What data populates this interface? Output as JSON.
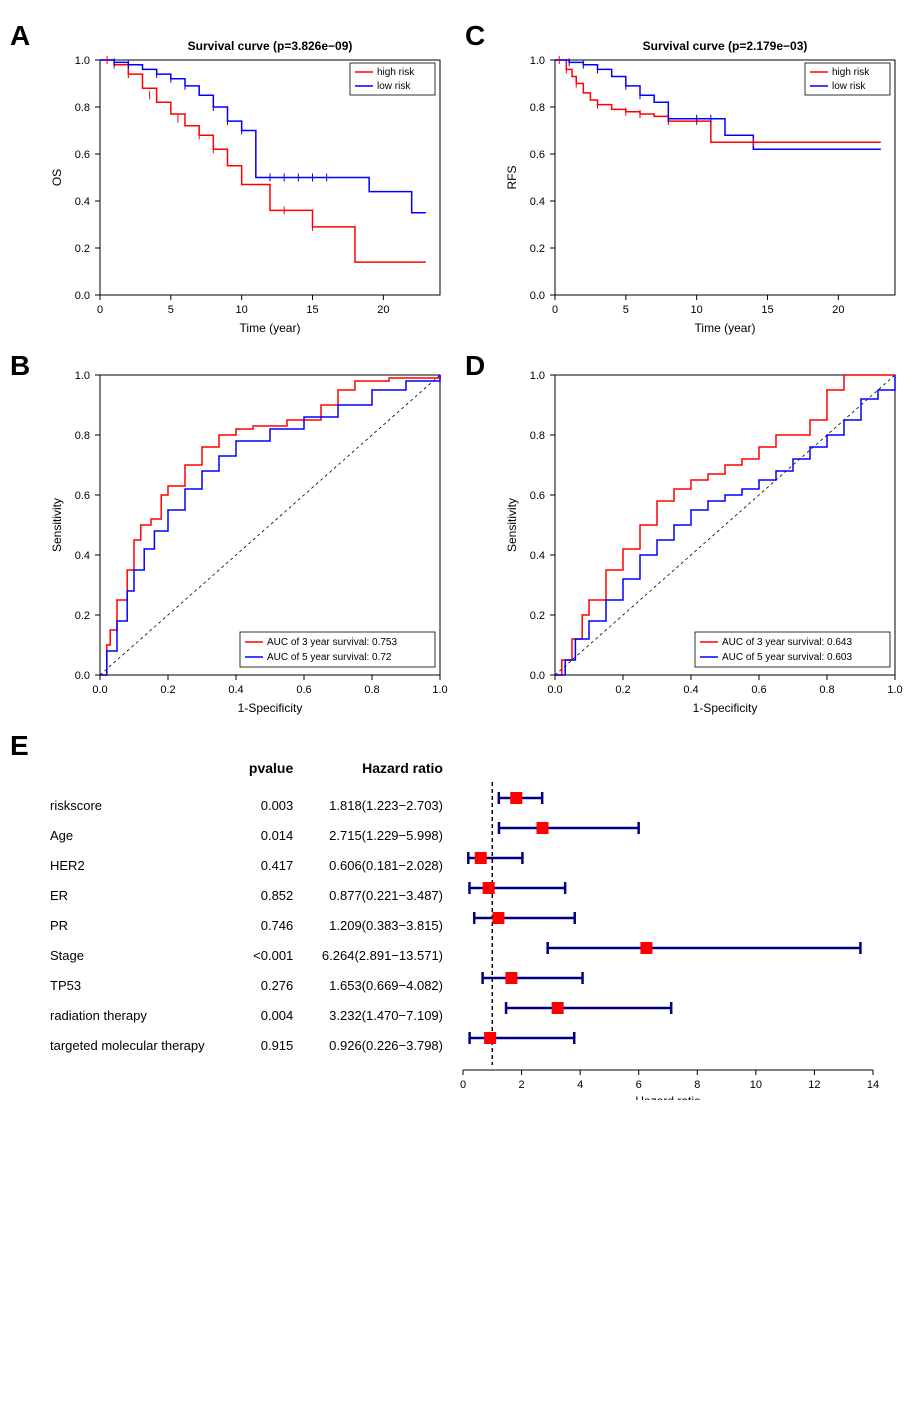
{
  "panel_labels": {
    "A": "A",
    "B": "B",
    "C": "C",
    "D": "D",
    "E": "E"
  },
  "colors": {
    "high_risk": "#ff0000",
    "low_risk": "#0000ff",
    "auc3": "#ff0000",
    "auc5": "#0000ff",
    "forest_line": "#000080",
    "forest_box": "#ff0000",
    "black": "#000000"
  },
  "panelA": {
    "type": "kaplan-meier",
    "title": "Survival curve (p=3.826e−09)",
    "xlabel": "Time (year)",
    "ylabel": "OS",
    "xlim": [
      0,
      24
    ],
    "xticks": [
      0,
      5,
      10,
      15,
      20
    ],
    "ylim": [
      0,
      1
    ],
    "yticks": [
      0.0,
      0.2,
      0.4,
      0.6,
      0.8,
      1.0
    ],
    "legend": [
      "high risk",
      "low risk"
    ],
    "high": [
      [
        0,
        1.0
      ],
      [
        1,
        0.98
      ],
      [
        2,
        0.94
      ],
      [
        3,
        0.88
      ],
      [
        4,
        0.82
      ],
      [
        5,
        0.77
      ],
      [
        6,
        0.72
      ],
      [
        7,
        0.68
      ],
      [
        8,
        0.62
      ],
      [
        9,
        0.55
      ],
      [
        10,
        0.47
      ],
      [
        11,
        0.47
      ],
      [
        12,
        0.36
      ],
      [
        13,
        0.36
      ],
      [
        14,
        0.36
      ],
      [
        15,
        0.29
      ],
      [
        16,
        0.29
      ],
      [
        17,
        0.29
      ],
      [
        18,
        0.14
      ],
      [
        19,
        0.14
      ],
      [
        23,
        0.14
      ]
    ],
    "low": [
      [
        0,
        1.0
      ],
      [
        1,
        0.99
      ],
      [
        2,
        0.98
      ],
      [
        3,
        0.96
      ],
      [
        4,
        0.94
      ],
      [
        5,
        0.92
      ],
      [
        6,
        0.89
      ],
      [
        7,
        0.85
      ],
      [
        8,
        0.8
      ],
      [
        9,
        0.74
      ],
      [
        10,
        0.7
      ],
      [
        11,
        0.5
      ],
      [
        12,
        0.5
      ],
      [
        13,
        0.5
      ],
      [
        14,
        0.5
      ],
      [
        15,
        0.5
      ],
      [
        16,
        0.5
      ],
      [
        18,
        0.5
      ],
      [
        19,
        0.44
      ],
      [
        20,
        0.44
      ],
      [
        22,
        0.35
      ],
      [
        23,
        0.35
      ]
    ],
    "censor_high": [
      [
        0.5,
        1.0
      ],
      [
        1,
        0.98
      ],
      [
        2,
        0.94
      ],
      [
        3.5,
        0.85
      ],
      [
        5.5,
        0.75
      ],
      [
        7,
        0.68
      ],
      [
        8,
        0.62
      ],
      [
        13,
        0.36
      ],
      [
        15,
        0.29
      ]
    ],
    "censor_low": [
      [
        1,
        0.99
      ],
      [
        2,
        0.98
      ],
      [
        4,
        0.94
      ],
      [
        5,
        0.92
      ],
      [
        6,
        0.89
      ],
      [
        8,
        0.8
      ],
      [
        9,
        0.74
      ],
      [
        10,
        0.7
      ],
      [
        12,
        0.5
      ],
      [
        13,
        0.5
      ],
      [
        14,
        0.5
      ],
      [
        15,
        0.5
      ],
      [
        16,
        0.5
      ]
    ]
  },
  "panelC": {
    "type": "kaplan-meier",
    "title": "Survival curve (p=2.179e−03)",
    "xlabel": "Time (year)",
    "ylabel": "RFS",
    "xlim": [
      0,
      24
    ],
    "xticks": [
      0,
      5,
      10,
      15,
      20
    ],
    "ylim": [
      0,
      1
    ],
    "yticks": [
      0.0,
      0.2,
      0.4,
      0.6,
      0.8,
      1.0
    ],
    "legend": [
      "high risk",
      "low risk"
    ],
    "high": [
      [
        0,
        1.0
      ],
      [
        0.8,
        0.96
      ],
      [
        1.2,
        0.93
      ],
      [
        1.5,
        0.9
      ],
      [
        2,
        0.86
      ],
      [
        2.5,
        0.83
      ],
      [
        3,
        0.81
      ],
      [
        4,
        0.79
      ],
      [
        5,
        0.78
      ],
      [
        6,
        0.77
      ],
      [
        7,
        0.76
      ],
      [
        8,
        0.74
      ],
      [
        10,
        0.74
      ],
      [
        11,
        0.65
      ],
      [
        14,
        0.65
      ],
      [
        16,
        0.65
      ],
      [
        23,
        0.65
      ]
    ],
    "low": [
      [
        0,
        1.0
      ],
      [
        1,
        0.99
      ],
      [
        2,
        0.98
      ],
      [
        3,
        0.96
      ],
      [
        4,
        0.93
      ],
      [
        5,
        0.89
      ],
      [
        6,
        0.85
      ],
      [
        7,
        0.82
      ],
      [
        8,
        0.75
      ],
      [
        9,
        0.75
      ],
      [
        10,
        0.75
      ],
      [
        11,
        0.75
      ],
      [
        12,
        0.68
      ],
      [
        13,
        0.68
      ],
      [
        14,
        0.62
      ],
      [
        16,
        0.62
      ],
      [
        23,
        0.62
      ]
    ],
    "censor_high": [
      [
        0.3,
        1.0
      ],
      [
        0.8,
        0.96
      ],
      [
        1.5,
        0.9
      ],
      [
        3,
        0.81
      ],
      [
        5,
        0.78
      ],
      [
        6,
        0.77
      ],
      [
        8,
        0.74
      ],
      [
        10,
        0.74
      ],
      [
        14,
        0.65
      ]
    ],
    "censor_low": [
      [
        1,
        0.99
      ],
      [
        2,
        0.98
      ],
      [
        3,
        0.96
      ],
      [
        5,
        0.89
      ],
      [
        6,
        0.85
      ],
      [
        8,
        0.75
      ],
      [
        10,
        0.75
      ],
      [
        11,
        0.75
      ]
    ]
  },
  "panelB": {
    "type": "roc",
    "xlabel": "1-Specificity",
    "ylabel": "Sensitivity",
    "xlim": [
      0,
      1
    ],
    "xticks": [
      0.0,
      0.2,
      0.4,
      0.6,
      0.8,
      1.0
    ],
    "ylim": [
      0,
      1
    ],
    "yticks": [
      0.0,
      0.2,
      0.4,
      0.6,
      0.8,
      1.0
    ],
    "legend": [
      "AUC of 3 year survival:  0.753",
      "AUC of 5 year survival:  0.72"
    ],
    "curve3": [
      [
        0,
        0
      ],
      [
        0.02,
        0.1
      ],
      [
        0.03,
        0.15
      ],
      [
        0.05,
        0.25
      ],
      [
        0.08,
        0.35
      ],
      [
        0.1,
        0.45
      ],
      [
        0.12,
        0.5
      ],
      [
        0.15,
        0.52
      ],
      [
        0.18,
        0.6
      ],
      [
        0.2,
        0.63
      ],
      [
        0.25,
        0.7
      ],
      [
        0.3,
        0.76
      ],
      [
        0.35,
        0.8
      ],
      [
        0.4,
        0.82
      ],
      [
        0.45,
        0.83
      ],
      [
        0.55,
        0.85
      ],
      [
        0.65,
        0.9
      ],
      [
        0.7,
        0.95
      ],
      [
        0.75,
        0.98
      ],
      [
        0.85,
        0.99
      ],
      [
        1.0,
        1.0
      ]
    ],
    "curve5": [
      [
        0,
        0
      ],
      [
        0.02,
        0.08
      ],
      [
        0.05,
        0.18
      ],
      [
        0.08,
        0.28
      ],
      [
        0.1,
        0.35
      ],
      [
        0.13,
        0.42
      ],
      [
        0.16,
        0.48
      ],
      [
        0.2,
        0.55
      ],
      [
        0.25,
        0.62
      ],
      [
        0.3,
        0.68
      ],
      [
        0.35,
        0.73
      ],
      [
        0.4,
        0.78
      ],
      [
        0.5,
        0.82
      ],
      [
        0.6,
        0.86
      ],
      [
        0.7,
        0.9
      ],
      [
        0.8,
        0.95
      ],
      [
        0.9,
        0.98
      ],
      [
        1.0,
        1.0
      ]
    ]
  },
  "panelD": {
    "type": "roc",
    "xlabel": "1-Specificity",
    "ylabel": "Sensitivity",
    "xlim": [
      0,
      1
    ],
    "xticks": [
      0.0,
      0.2,
      0.4,
      0.6,
      0.8,
      1.0
    ],
    "ylim": [
      0,
      1
    ],
    "yticks": [
      0.0,
      0.2,
      0.4,
      0.6,
      0.8,
      1.0
    ],
    "legend": [
      "AUC of 3 year survival:  0.643",
      "AUC of 5 year survival:  0.603"
    ],
    "curve3": [
      [
        0,
        0
      ],
      [
        0.02,
        0.05
      ],
      [
        0.05,
        0.12
      ],
      [
        0.08,
        0.2
      ],
      [
        0.1,
        0.25
      ],
      [
        0.15,
        0.35
      ],
      [
        0.2,
        0.42
      ],
      [
        0.25,
        0.5
      ],
      [
        0.3,
        0.58
      ],
      [
        0.35,
        0.62
      ],
      [
        0.4,
        0.65
      ],
      [
        0.45,
        0.67
      ],
      [
        0.5,
        0.7
      ],
      [
        0.55,
        0.72
      ],
      [
        0.6,
        0.76
      ],
      [
        0.65,
        0.8
      ],
      [
        0.7,
        0.8
      ],
      [
        0.75,
        0.85
      ],
      [
        0.8,
        0.95
      ],
      [
        0.85,
        1.0
      ],
      [
        1.0,
        1.0
      ]
    ],
    "curve5": [
      [
        0,
        0
      ],
      [
        0.03,
        0.05
      ],
      [
        0.06,
        0.12
      ],
      [
        0.1,
        0.18
      ],
      [
        0.15,
        0.25
      ],
      [
        0.2,
        0.32
      ],
      [
        0.25,
        0.4
      ],
      [
        0.3,
        0.45
      ],
      [
        0.35,
        0.5
      ],
      [
        0.4,
        0.55
      ],
      [
        0.45,
        0.58
      ],
      [
        0.5,
        0.6
      ],
      [
        0.55,
        0.62
      ],
      [
        0.6,
        0.65
      ],
      [
        0.65,
        0.68
      ],
      [
        0.7,
        0.72
      ],
      [
        0.75,
        0.76
      ],
      [
        0.8,
        0.8
      ],
      [
        0.85,
        0.85
      ],
      [
        0.9,
        0.92
      ],
      [
        0.95,
        0.95
      ],
      [
        1.0,
        1.0
      ]
    ]
  },
  "panelE": {
    "type": "forest",
    "headers": {
      "pvalue": "pvalue",
      "hr": "Hazard ratio",
      "xaxis": "Hazard ratio"
    },
    "xlim": [
      0,
      14
    ],
    "xticks": [
      0,
      2,
      4,
      6,
      8,
      10,
      12,
      14
    ],
    "ref_line": 1,
    "rows": [
      {
        "label": "riskscore",
        "pvalue": "0.003",
        "hr_text": "1.818(1.223−2.703)",
        "hr": 1.818,
        "lo": 1.223,
        "hi": 2.703
      },
      {
        "label": "Age",
        "pvalue": "0.014",
        "hr_text": "2.715(1.229−5.998)",
        "hr": 2.715,
        "lo": 1.229,
        "hi": 5.998
      },
      {
        "label": "HER2",
        "pvalue": "0.417",
        "hr_text": "0.606(0.181−2.028)",
        "hr": 0.606,
        "lo": 0.181,
        "hi": 2.028
      },
      {
        "label": "ER",
        "pvalue": "0.852",
        "hr_text": "0.877(0.221−3.487)",
        "hr": 0.877,
        "lo": 0.221,
        "hi": 3.487
      },
      {
        "label": "PR",
        "pvalue": "0.746",
        "hr_text": "1.209(0.383−3.815)",
        "hr": 1.209,
        "lo": 0.383,
        "hi": 3.815
      },
      {
        "label": "Stage",
        "pvalue": "<0.001",
        "hr_text": "6.264(2.891−13.571)",
        "hr": 6.264,
        "lo": 2.891,
        "hi": 13.571
      },
      {
        "label": "TP53",
        "pvalue": "0.276",
        "hr_text": "1.653(0.669−4.082)",
        "hr": 1.653,
        "lo": 0.669,
        "hi": 4.082
      },
      {
        "label": "radiation therapy",
        "pvalue": "0.004",
        "hr_text": "3.232(1.470−7.109)",
        "hr": 3.232,
        "lo": 1.47,
        "hi": 7.109
      },
      {
        "label": "targeted molecular therapy",
        "pvalue": "0.915",
        "hr_text": "0.926(0.226−3.798)",
        "hr": 0.926,
        "lo": 0.226,
        "hi": 3.798
      }
    ]
  }
}
